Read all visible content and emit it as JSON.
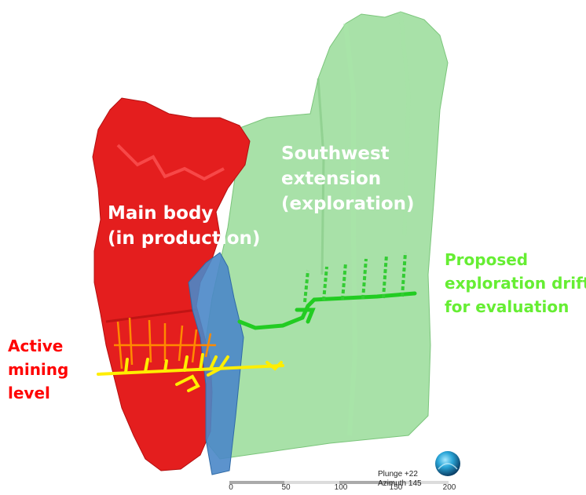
{
  "labels": {
    "main_body": [
      "Main body",
      "(in production)"
    ],
    "southwest": [
      "Southwest",
      "extension",
      "(exploration)"
    ],
    "drift": [
      "Proposed",
      "exploration drift",
      "for evaluation"
    ],
    "active": [
      "Active",
      "mining",
      "level"
    ]
  },
  "orientation": {
    "plunge": "Plunge +22",
    "azimuth": "Azimuth 145"
  },
  "scale_bar": {
    "ticks": [
      "0",
      "50",
      "100",
      "150",
      "200"
    ]
  },
  "colors": {
    "main_body": "#e41e1e",
    "southwest_zone": "#8fd88f",
    "fault_plane": "#4a87c8",
    "active_level": "#ffee00",
    "proposed_drift": "#22cc22",
    "label_red": "#ff0000",
    "label_green": "#66ee33"
  },
  "icons": {
    "orientation": "orientation-sphere-icon"
  }
}
